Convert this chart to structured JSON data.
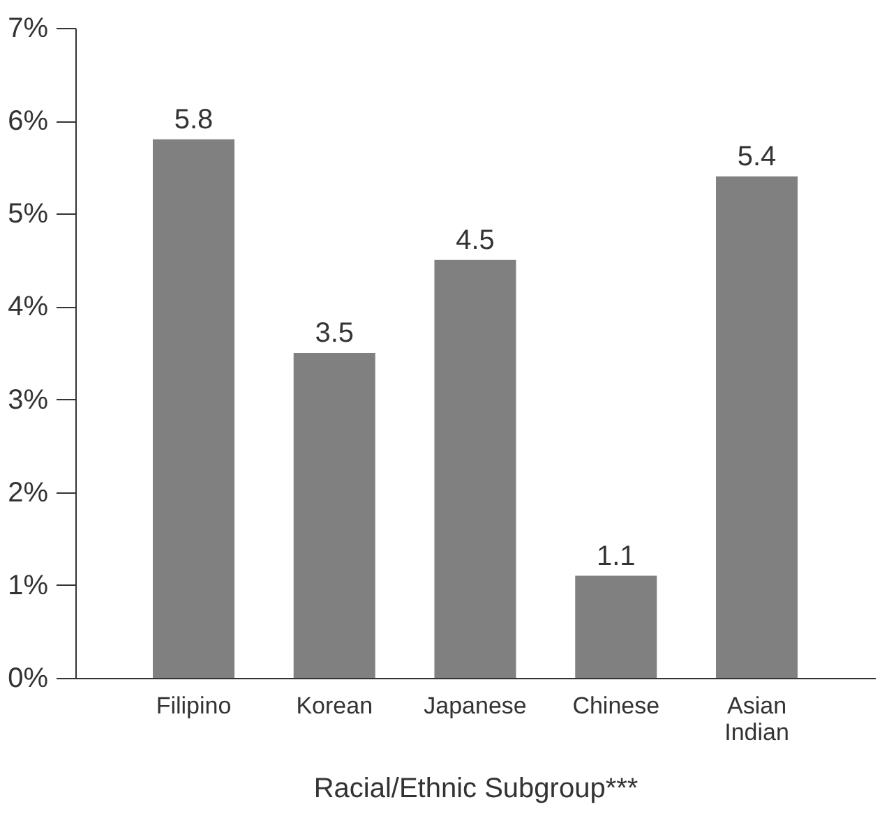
{
  "chart_data": {
    "type": "bar",
    "xlabel": "Racial/Ethnic Subgroup***",
    "categories": [
      "Filipino",
      "Korean",
      "Japanese",
      "Chinese",
      "Asian Indian"
    ],
    "values": [
      5.8,
      3.5,
      4.5,
      1.1,
      5.4
    ],
    "color": "#808080",
    "ylim": [
      0,
      7
    ],
    "yticks": [
      {
        "value": 0,
        "label": "0%"
      },
      {
        "value": 1,
        "label": "1%"
      },
      {
        "value": 2,
        "label": "2%"
      },
      {
        "value": 3,
        "label": "3%"
      },
      {
        "value": 4,
        "label": "4%"
      },
      {
        "value": 5,
        "label": "5%"
      },
      {
        "value": 6,
        "label": "6%"
      },
      {
        "value": 7,
        "label": "7%"
      }
    ],
    "data_labels": true,
    "grid": false
  }
}
